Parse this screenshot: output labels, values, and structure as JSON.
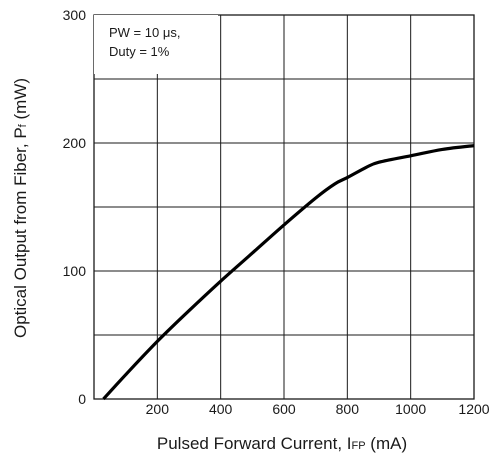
{
  "chart_data": {
    "type": "line",
    "xlabel_prefix": "Pulsed Forward Current, I",
    "xlabel_sub": "FP",
    "xlabel_suffix": " (mA)",
    "ylabel_prefix": "Optical Output from Fiber, P",
    "ylabel_sub": "f",
    "ylabel_suffix": " (mW)",
    "xlim": [
      0,
      1200
    ],
    "ylim": [
      0,
      300
    ],
    "xticks": [
      200,
      400,
      600,
      800,
      1000,
      1200
    ],
    "xtick_labels": [
      "200",
      "400",
      "600",
      "800",
      "1000",
      "1200"
    ],
    "yticks": [
      0,
      100,
      200,
      300
    ],
    "ytick_labels": [
      "0",
      "100",
      "200",
      "300"
    ],
    "grid": true,
    "annotation_lines": [
      "PW = 10 μs,",
      "Duty = 1%"
    ],
    "series": [
      {
        "x": [
          30,
          100,
          200,
          300,
          400,
          500,
          600,
          700,
          760,
          800,
          860,
          900,
          1000,
          1100,
          1200
        ],
        "y": [
          0,
          19,
          45,
          69,
          92,
          114,
          136,
          157,
          168,
          173,
          181,
          185,
          190,
          195,
          198
        ]
      }
    ]
  },
  "colors": {
    "line": "#000000",
    "grid": "#1a1a1a",
    "frame": "#1a1a1a",
    "text": "#1a1a1a"
  }
}
